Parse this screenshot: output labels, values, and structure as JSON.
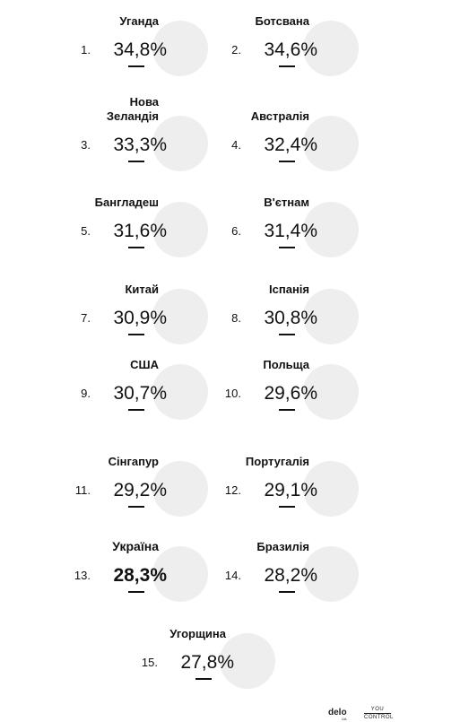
{
  "chart_data": {
    "type": "pie",
    "unit": "%",
    "items": [
      {
        "rank": "1.",
        "country": [
          "Уганда"
        ],
        "value": 34.8,
        "label": "34,8%",
        "flag": "uganda-flag"
      },
      {
        "rank": "2.",
        "country": [
          "Ботсвана"
        ],
        "value": 34.6,
        "label": "34,6%",
        "flag": "botswana-flag"
      },
      {
        "rank": "3.",
        "country": [
          "Нова",
          "Зеландія"
        ],
        "value": 33.3,
        "label": "33,3%",
        "flag": "new-zealand-flag"
      },
      {
        "rank": "4.",
        "country": [
          "Австралія"
        ],
        "value": 32.4,
        "label": "32,4%",
        "flag": "australia-flag"
      },
      {
        "rank": "5.",
        "country": [
          "Бангладеш"
        ],
        "value": 31.6,
        "label": "31,6%",
        "flag": "bangladesh-flag"
      },
      {
        "rank": "6.",
        "country": [
          "В'єтнам"
        ],
        "value": 31.4,
        "label": "31,4%",
        "flag": "vietnam-flag"
      },
      {
        "rank": "7.",
        "country": [
          "Китай"
        ],
        "value": 30.9,
        "label": "30,9%",
        "flag": "china-flag"
      },
      {
        "rank": "8.",
        "country": [
          "Іспанія"
        ],
        "value": 30.8,
        "label": "30,8%",
        "flag": "spain-flag"
      },
      {
        "rank": "9.",
        "country": [
          "США"
        ],
        "value": 30.7,
        "label": "30,7%",
        "flag": "usa-flag"
      },
      {
        "rank": "10.",
        "country": [
          "Польща"
        ],
        "value": 29.6,
        "label": "29,6%",
        "flag": "poland-flag"
      },
      {
        "rank": "11.",
        "country": [
          "Сінгапур"
        ],
        "value": 29.2,
        "label": "29,2%",
        "flag": "singapore-flag"
      },
      {
        "rank": "12.",
        "country": [
          "Португалія"
        ],
        "value": 29.1,
        "label": "29,1%",
        "flag": "portugal-flag"
      },
      {
        "rank": "13.",
        "country": [
          "Україна"
        ],
        "value": 28.3,
        "label": "28,3%",
        "flag": "ukraine-flag",
        "highlight": true
      },
      {
        "rank": "14.",
        "country": [
          "Бразилія"
        ],
        "value": 28.2,
        "label": "28,2%",
        "flag": "brazil-flag"
      },
      {
        "rank": "15.",
        "country": [
          "Угорщина"
        ],
        "value": 27.8,
        "label": "27,8%",
        "flag": "hungary-flag"
      }
    ]
  },
  "colors": {
    "pie_remainder": "#eeeeee",
    "text": "#111111"
  },
  "footer": {
    "delo": "delo",
    "delo_sub": "UA",
    "you": "YOU",
    "control": "CONTROL"
  }
}
